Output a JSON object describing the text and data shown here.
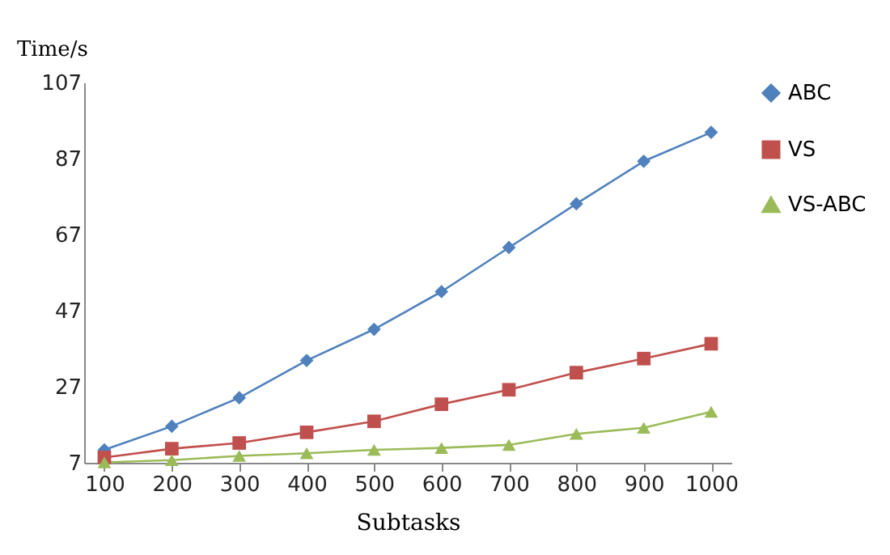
{
  "chart_data": {
    "type": "line",
    "xlabel": "Subtasks",
    "ylabel": "Time/s",
    "categories": [
      "100",
      "200",
      "300",
      "400",
      "500",
      "600",
      "700",
      "800",
      "900",
      "1000"
    ],
    "series": [
      {
        "name": "ABC",
        "color": "#4f81bd",
        "marker": "diamond",
        "values": [
          10.4,
          16.6,
          24.1,
          33.9,
          42.1,
          52.0,
          63.6,
          75.1,
          86.3,
          93.9
        ]
      },
      {
        "name": "VS",
        "color": "#c0504d",
        "marker": "square",
        "values": [
          8.4,
          10.7,
          12.2,
          15.0,
          17.9,
          22.4,
          26.2,
          30.7,
          34.4,
          38.3
        ]
      },
      {
        "name": "VS-ABC",
        "color": "#9bbb59",
        "marker": "triangle",
        "values": [
          7.1,
          7.7,
          8.8,
          9.5,
          10.4,
          10.9,
          11.7,
          14.6,
          16.2,
          20.4
        ]
      }
    ],
    "ylim": [
      7,
      107
    ],
    "yticks": [
      7,
      27,
      47,
      67,
      87,
      107
    ],
    "grid": false,
    "legend": "right"
  }
}
